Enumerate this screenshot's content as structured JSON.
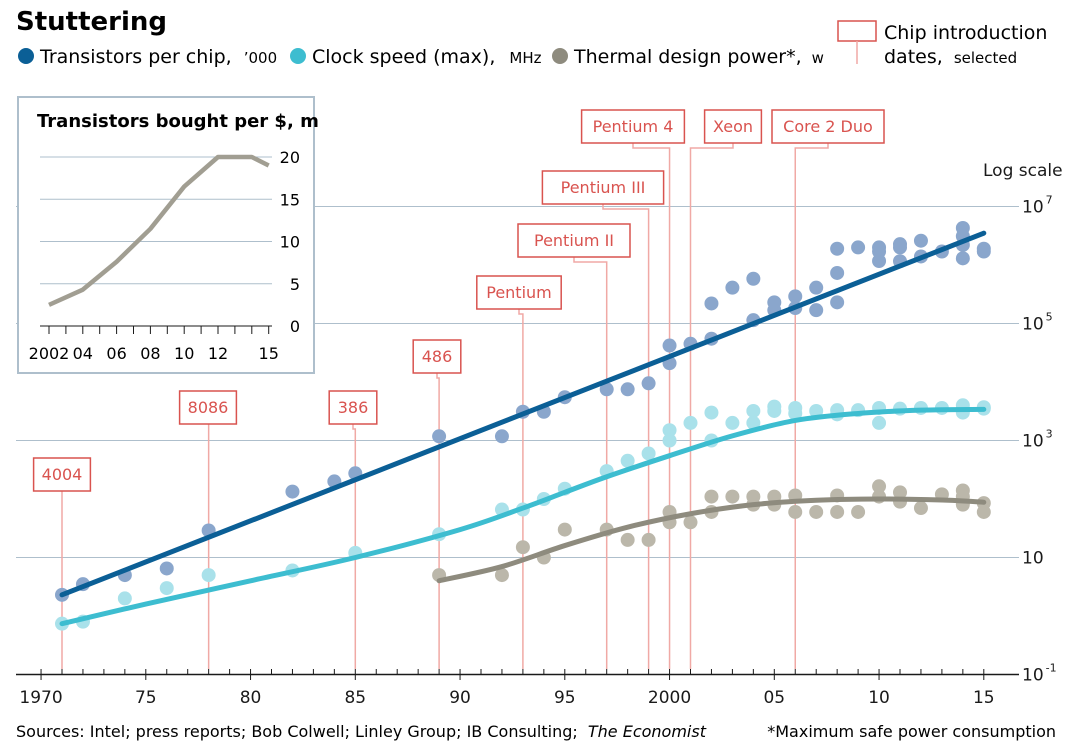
{
  "title": "Stuttering",
  "legend": {
    "transistors": {
      "label": "Transistors per chip,",
      "unit": "’000",
      "color": "#0b5f96"
    },
    "clock": {
      "label": "Clock speed (max),",
      "unit": "MHz",
      "color": "#3dbdd0"
    },
    "power": {
      "label": "Thermal design power*,",
      "unit": "w",
      "color": "#8e8b7e"
    },
    "chip_intro": {
      "line1": "Chip introduction",
      "line2": "dates,",
      "line2_suffix": "selected"
    }
  },
  "log_scale_label": "Log scale",
  "y_ticks": [
    {
      "base": "10",
      "exp": "7",
      "value": 10000000
    },
    {
      "base": "10",
      "exp": "5",
      "value": 100000
    },
    {
      "base": "10",
      "exp": "3",
      "value": 1000
    },
    {
      "base": "10",
      "exp": "",
      "value": 10
    },
    {
      "base": "10",
      "exp": "-1",
      "value": 0.1
    }
  ],
  "x_ticks": [
    "1970",
    "75",
    "80",
    "85",
    "90",
    "95",
    "2000",
    "05",
    "10",
    "15"
  ],
  "source": "Sources: Intel; press reports; Bob Colwell; Linley Group; IB Consulting;",
  "source_italic": "The Economist",
  "footnote": "*Maximum safe power consumption",
  "inset": {
    "title": "Transistors bought per $, m",
    "x_ticks": [
      "2002",
      "04",
      "06",
      "08",
      "10",
      "12",
      "15"
    ],
    "y_ticks": [
      "20",
      "15",
      "10",
      "5",
      "0"
    ]
  },
  "chart_data": [
    {
      "type": "scatter",
      "title": "Stuttering",
      "xlim": [
        1970,
        2015
      ],
      "ylim": [
        0.1,
        10000000
      ],
      "y_scale": "log",
      "grid": true,
      "legend_position": "top",
      "chip_introductions": [
        {
          "name": "4004",
          "year": 1971
        },
        {
          "name": "8086",
          "year": 1978
        },
        {
          "name": "386",
          "year": 1985
        },
        {
          "name": "486",
          "year": 1989
        },
        {
          "name": "Pentium",
          "year": 1993
        },
        {
          "name": "Pentium II",
          "year": 1997
        },
        {
          "name": "Pentium III",
          "year": 1999
        },
        {
          "name": "Pentium 4",
          "year": 2000
        },
        {
          "name": "Xeon",
          "year": 2001
        },
        {
          "name": "Core 2 Duo",
          "year": 2006
        }
      ],
      "series": [
        {
          "name": "Transistors per chip, ’000",
          "color": "#0b5f96",
          "points": [
            [
              1971,
              2.3
            ],
            [
              1972,
              3.5
            ],
            [
              1974,
              5
            ],
            [
              1976,
              6.5
            ],
            [
              1978,
              29
            ],
            [
              1982,
              134
            ],
            [
              1984,
              200
            ],
            [
              1985,
              275
            ],
            [
              1989,
              1180
            ],
            [
              1992,
              1180
            ],
            [
              1993,
              3100
            ],
            [
              1994,
              3100
            ],
            [
              1995,
              5500
            ],
            [
              1997,
              7500
            ],
            [
              1998,
              7500
            ],
            [
              1999,
              9500
            ],
            [
              2000,
              42000
            ],
            [
              2000,
              21000
            ],
            [
              2001,
              45000
            ],
            [
              2002,
              55000
            ],
            [
              2002,
              220000
            ],
            [
              2003,
              410000
            ],
            [
              2004,
              582000
            ],
            [
              2004,
              114000
            ],
            [
              2005,
              230000
            ],
            [
              2005,
              169000
            ],
            [
              2006,
              291000
            ],
            [
              2006,
              184000
            ],
            [
              2007,
              410000
            ],
            [
              2007,
              169000
            ],
            [
              2008,
              1900000
            ],
            [
              2008,
              731000
            ],
            [
              2008,
              230000
            ],
            [
              2009,
              2000000
            ],
            [
              2010,
              2000000
            ],
            [
              2010,
              1170000
            ],
            [
              2010,
              1700000
            ],
            [
              2011,
              2270000
            ],
            [
              2011,
              1160000
            ],
            [
              2011,
              2000000
            ],
            [
              2012,
              2600000
            ],
            [
              2012,
              1400000
            ],
            [
              2013,
              1700000
            ],
            [
              2014,
              4300000
            ],
            [
              2014,
              3100000
            ],
            [
              2014,
              2200000
            ],
            [
              2014,
              1300000
            ],
            [
              2015,
              1900000
            ],
            [
              2015,
              1700000
            ]
          ],
          "trend": [
            [
              1971,
              2.3
            ],
            [
              2015,
              3500000
            ]
          ]
        },
        {
          "name": "Clock speed (max), MHz",
          "color": "#3dbdd0",
          "points": [
            [
              1971,
              0.74
            ],
            [
              1972,
              0.8
            ],
            [
              1974,
              2
            ],
            [
              1976,
              3
            ],
            [
              1978,
              5
            ],
            [
              1982,
              6
            ],
            [
              1985,
              12
            ],
            [
              1989,
              25
            ],
            [
              1992,
              66
            ],
            [
              1993,
              66
            ],
            [
              1994,
              100
            ],
            [
              1995,
              150
            ],
            [
              1997,
              300
            ],
            [
              1998,
              450
            ],
            [
              1999,
              600
            ],
            [
              2000,
              1500
            ],
            [
              2000,
              1000
            ],
            [
              2001,
              2000
            ],
            [
              2002,
              3000
            ],
            [
              2002,
              1000
            ],
            [
              2003,
              2000
            ],
            [
              2004,
              3200
            ],
            [
              2004,
              2000
            ],
            [
              2005,
              3800
            ],
            [
              2005,
              3200
            ],
            [
              2006,
              3600
            ],
            [
              2006,
              2900
            ],
            [
              2007,
              3200
            ],
            [
              2008,
              3300
            ],
            [
              2008,
              2800
            ],
            [
              2009,
              3300
            ],
            [
              2010,
              3600
            ],
            [
              2010,
              2000
            ],
            [
              2011,
              3500
            ],
            [
              2012,
              3600
            ],
            [
              2013,
              3600
            ],
            [
              2014,
              4000
            ],
            [
              2014,
              3500
            ],
            [
              2014,
              3000
            ],
            [
              2015,
              3700
            ],
            [
              2015,
              3500
            ]
          ],
          "trend": [
            [
              1971,
              0.74
            ],
            [
              1975,
              1.6
            ],
            [
              1980,
              4
            ],
            [
              1985,
              10
            ],
            [
              1990,
              30
            ],
            [
              1993,
              70
            ],
            [
              1995,
              130
            ],
            [
              1997,
              240
            ],
            [
              2000,
              550
            ],
            [
              2003,
              1200
            ],
            [
              2006,
              2200
            ],
            [
              2009,
              2900
            ],
            [
              2012,
              3300
            ],
            [
              2015,
              3400
            ]
          ]
        },
        {
          "name": "Thermal design power*, w",
          "color": "#8e8b7e",
          "points": [
            [
              1989,
              5
            ],
            [
              1992,
              5
            ],
            [
              1993,
              15
            ],
            [
              1994,
              10
            ],
            [
              1995,
              30
            ],
            [
              1997,
              30
            ],
            [
              1998,
              20
            ],
            [
              1999,
              20
            ],
            [
              2000,
              60
            ],
            [
              2000,
              40
            ],
            [
              2001,
              40
            ],
            [
              2002,
              110
            ],
            [
              2002,
              60
            ],
            [
              2003,
              110
            ],
            [
              2004,
              110
            ],
            [
              2004,
              80
            ],
            [
              2005,
              110
            ],
            [
              2005,
              80
            ],
            [
              2006,
              115
            ],
            [
              2006,
              60
            ],
            [
              2007,
              60
            ],
            [
              2008,
              115
            ],
            [
              2008,
              60
            ],
            [
              2009,
              60
            ],
            [
              2010,
              165
            ],
            [
              2010,
              110
            ],
            [
              2011,
              130
            ],
            [
              2011,
              90
            ],
            [
              2012,
              70
            ],
            [
              2013,
              120
            ],
            [
              2014,
              140
            ],
            [
              2014,
              110
            ],
            [
              2014,
              80
            ],
            [
              2015,
              85
            ],
            [
              2015,
              60
            ]
          ],
          "trend": [
            [
              1989,
              4
            ],
            [
              1992,
              7
            ],
            [
              1995,
              16
            ],
            [
              1998,
              33
            ],
            [
              2001,
              56
            ],
            [
              2004,
              80
            ],
            [
              2007,
              95
            ],
            [
              2010,
              100
            ],
            [
              2013,
              96
            ],
            [
              2015,
              88
            ]
          ]
        }
      ]
    },
    {
      "type": "line",
      "title": "Transistors bought per $, m",
      "x": [
        2002,
        2004,
        2006,
        2008,
        2010,
        2012,
        2014,
        2015
      ],
      "values": [
        2.5,
        4.3,
        7.6,
        11.5,
        16.5,
        20,
        20,
        19
      ],
      "ylim": [
        0,
        20
      ],
      "xlim": [
        2002,
        2015
      ],
      "grid": true
    }
  ]
}
